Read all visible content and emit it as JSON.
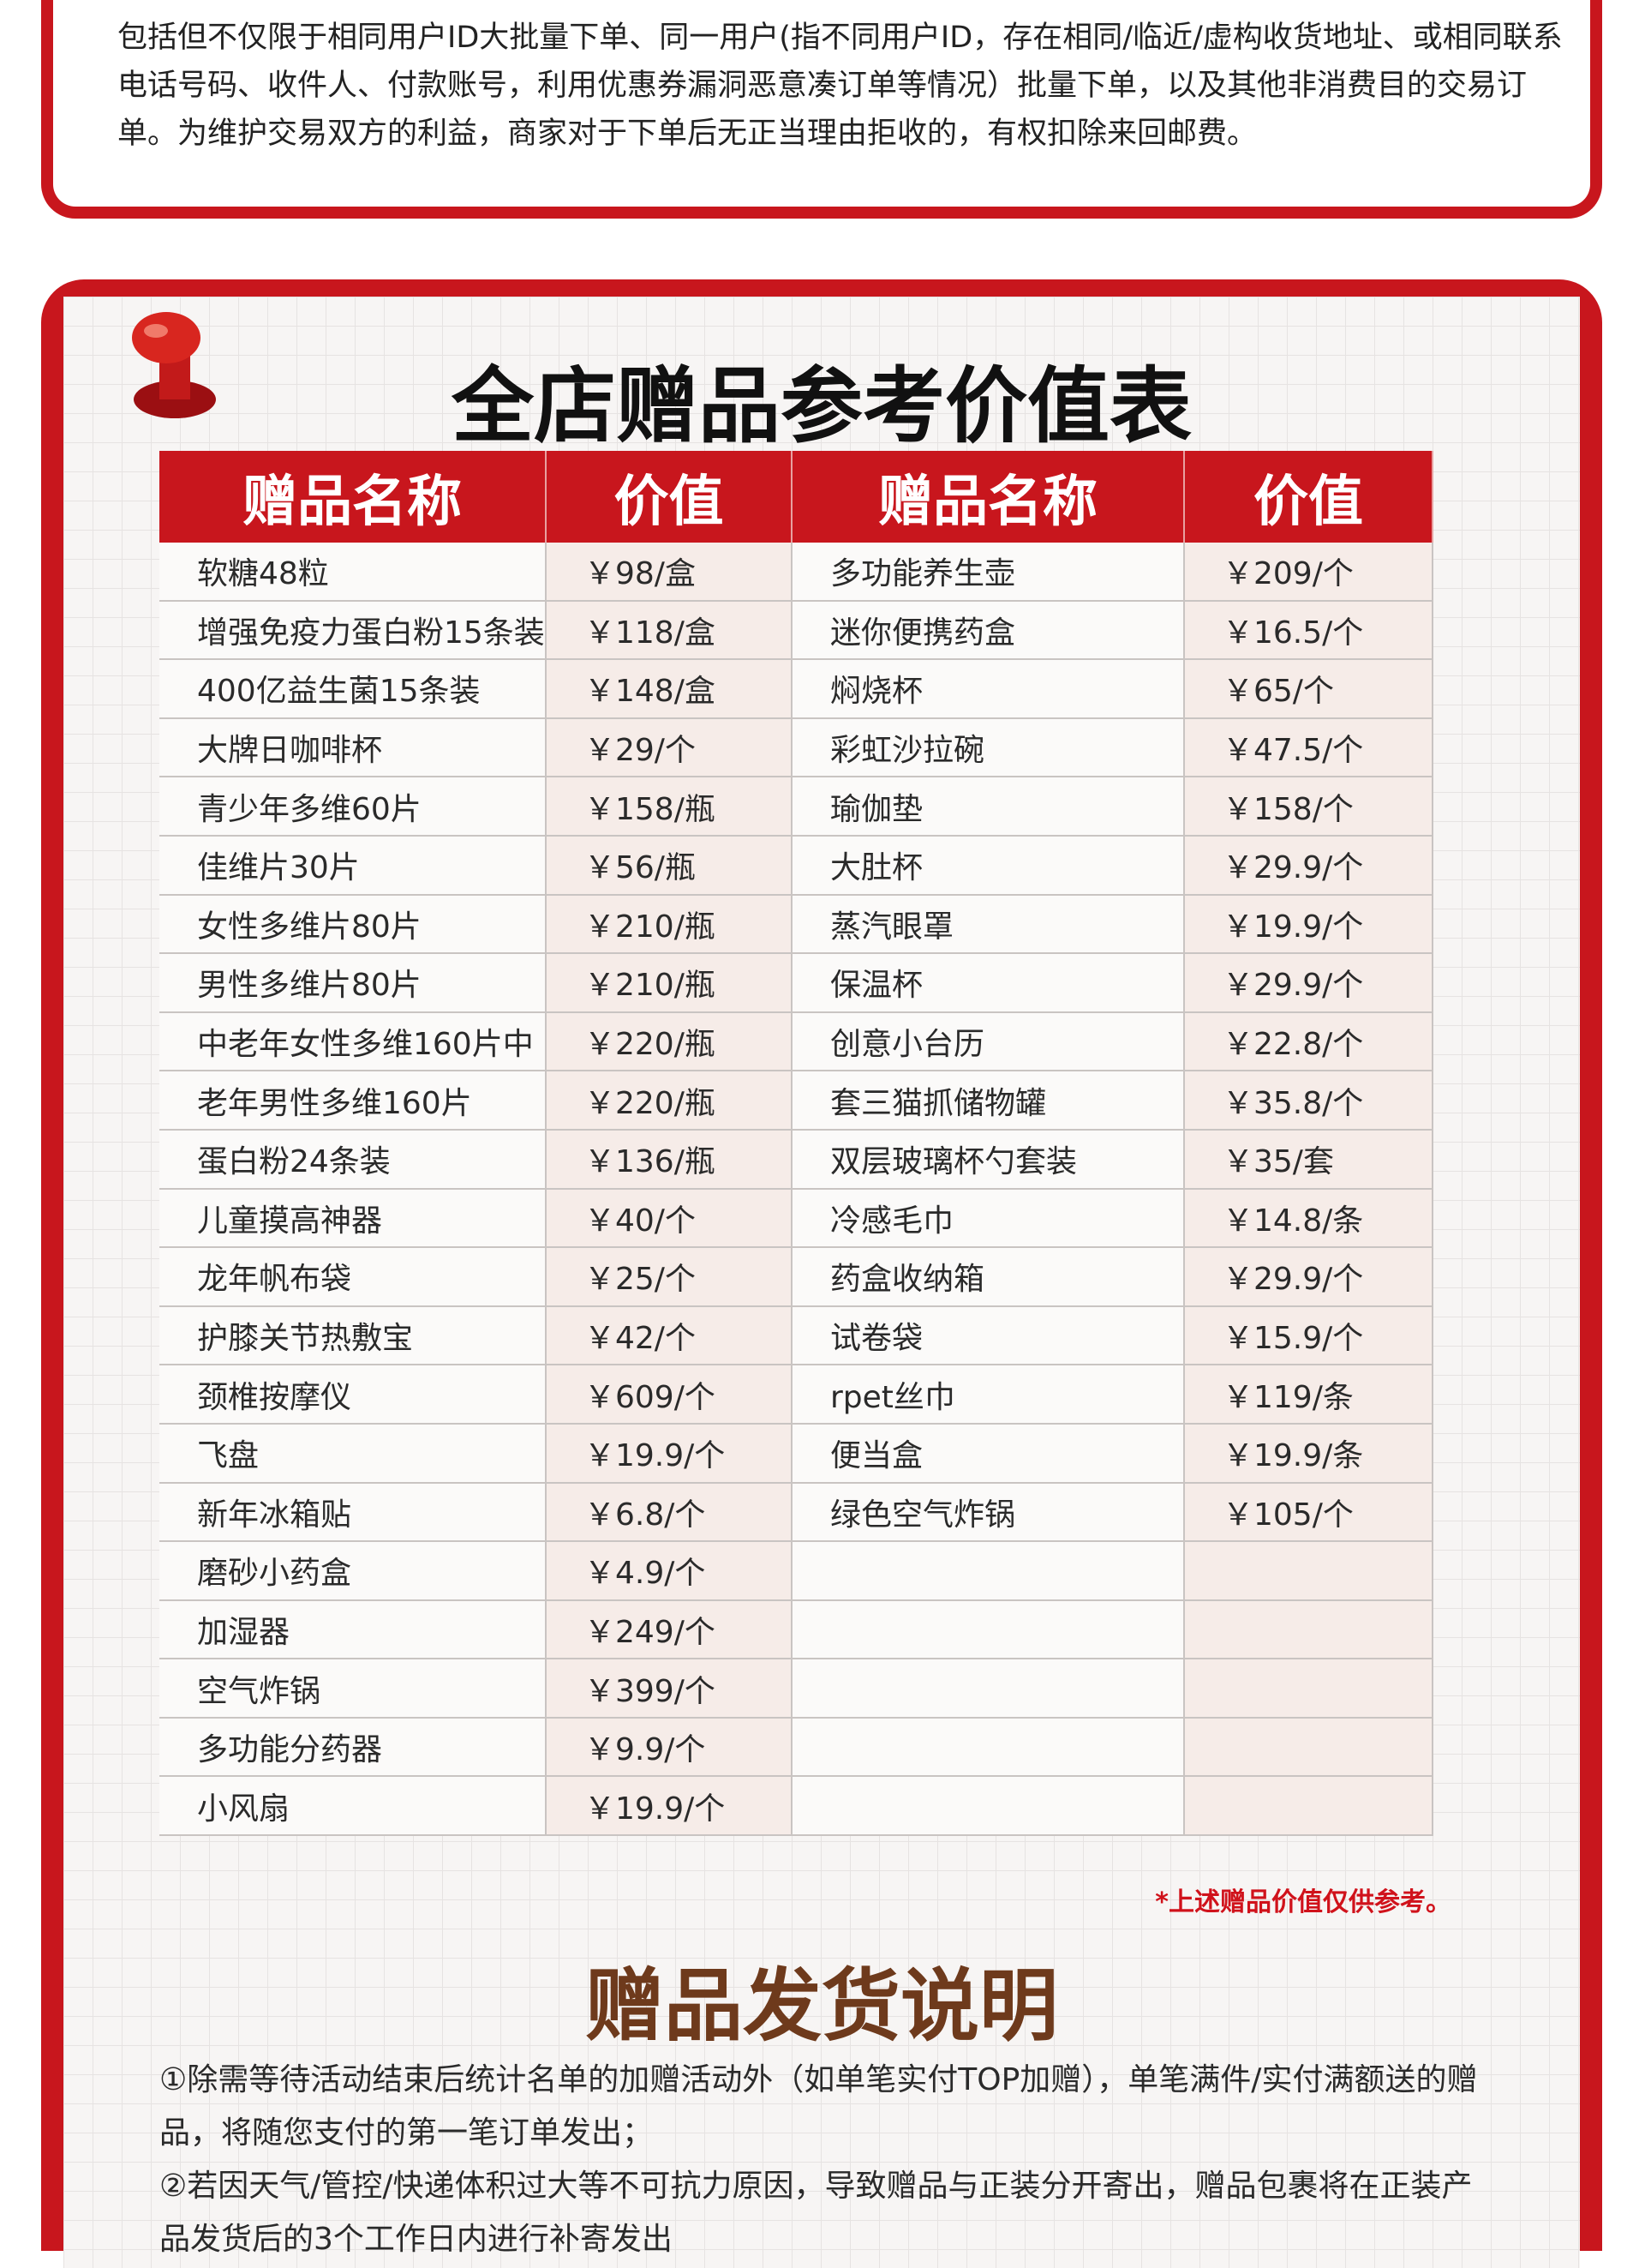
{
  "top_notice": {
    "text": "包括但不仅限于相同用户ID大批量下单、同一用户(指不同用户ID，存在相同/临近/虚构收货地址、或相同联系电话号码、收件人、付款账号，利用优惠券漏洞恶意凑订单等情况）批量下单，以及其他非消费目的交易订单。为维护交易双方的利益，商家对于下单后无正当理由拒收的，有权扣除来回邮费。"
  },
  "gift_table": {
    "title": "全店赠品参考价值表",
    "headers": [
      "赠品名称",
      "价值",
      "赠品名称",
      "价值"
    ],
    "left_items": [
      [
        "软糖48粒",
        "￥98/盒"
      ],
      [
        "增强免疫力蛋白粉15条装",
        "￥118/盒"
      ],
      [
        "400亿益生菌15条装",
        "￥148/盒"
      ],
      [
        "大牌日咖啡杯",
        "￥29/个"
      ],
      [
        "青少年多维60片",
        "￥158/瓶"
      ],
      [
        "佳维片30片",
        "￥56/瓶"
      ],
      [
        "女性多维片80片",
        "￥210/瓶"
      ],
      [
        "男性多维片80片",
        "￥210/瓶"
      ],
      [
        "中老年女性多维160片中",
        "￥220/瓶"
      ],
      [
        "老年男性多维160片",
        "￥220/瓶"
      ],
      [
        "蛋白粉24条装",
        "￥136/瓶"
      ],
      [
        "儿童摸高神器",
        "￥40/个"
      ],
      [
        "龙年帆布袋",
        "￥25/个"
      ],
      [
        "护膝关节热敷宝",
        "￥42/个"
      ],
      [
        "颈椎按摩仪",
        "￥609/个"
      ],
      [
        "飞盘",
        "￥19.9/个"
      ],
      [
        "新年冰箱贴",
        "￥6.8/个"
      ],
      [
        "磨砂小药盒",
        "￥4.9/个"
      ],
      [
        "加湿器",
        "￥249/个"
      ],
      [
        "空气炸锅",
        "￥399/个"
      ],
      [
        "多功能分药器",
        "￥9.9/个"
      ],
      [
        "小风扇",
        "￥19.9/个"
      ]
    ],
    "right_items": [
      [
        "多功能养生壶",
        "￥209/个"
      ],
      [
        "迷你便携药盒",
        "￥16.5/个"
      ],
      [
        "焖烧杯",
        "￥65/个"
      ],
      [
        "彩虹沙拉碗",
        "￥47.5/个"
      ],
      [
        "瑜伽垫",
        "￥158/个"
      ],
      [
        "大肚杯",
        "￥29.9/个"
      ],
      [
        "蒸汽眼罩",
        "￥19.9/个"
      ],
      [
        "保温杯",
        "￥29.9/个"
      ],
      [
        "创意小台历",
        "￥22.8/个"
      ],
      [
        "套三猫抓储物罐",
        "￥35.8/个"
      ],
      [
        "双层玻璃杯勺套装",
        "￥35/套"
      ],
      [
        "冷感毛巾",
        "￥14.8/条"
      ],
      [
        "药盒收纳箱",
        "￥29.9/个"
      ],
      [
        "试卷袋",
        "￥15.9/个"
      ],
      [
        "rpet丝巾",
        "￥119/条"
      ],
      [
        "便当盒",
        "￥19.9/条"
      ],
      [
        "绿色空气炸锅",
        "￥105/个"
      ]
    ],
    "note": "*上述赠品价值仅供参考。"
  },
  "shipping": {
    "title": "赠品发货说明",
    "items": [
      "①除需等待活动结束后统计名单的加赠活动外（如单笔实付TOP加赠），单笔满件/实付满额送的赠品，将随您支付的第一笔订单发出；",
      "②若因天气/管控/快递体积过大等不可抗力原因，导致赠品与正装分开寄出，赠品包裹将在正装产品发货后的3个工作日内进行补寄发出"
    ]
  }
}
